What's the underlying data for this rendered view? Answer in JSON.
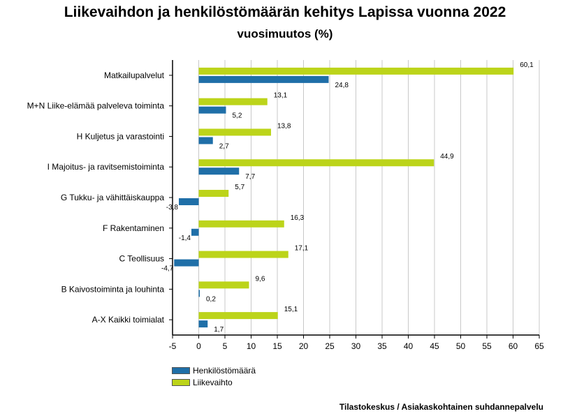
{
  "title": "Liikevaihdon ja henkilöstömäärän kehitys Lapissa vuonna 2022",
  "subtitle": "vuosimuutos (%)",
  "source": "Tilastokeskus / Asiakaskohtainen suhdannepalvelu",
  "legend": {
    "henkilosto": "Henkilöstömäärä",
    "liikevaihto": "Liikevaihto"
  },
  "colors": {
    "henkilosto": "#1f6fa8",
    "liikevaihto": "#bcd41a"
  },
  "chart_data": {
    "type": "bar",
    "orientation": "horizontal",
    "title": "Liikevaihdon ja henkilöstömäärän kehitys Lapissa vuonna 2022",
    "subtitle": "vuosimuutos (%)",
    "categories": [
      "Matkailupalvelut",
      "M+N Liike-elämää palveleva toiminta",
      "H Kuljetus ja varastointi",
      "I Majoitus- ja ravitsemistoiminta",
      "G Tukku- ja vähittäiskauppa",
      "F Rakentaminen",
      "C Teollisuus",
      "B Kaivostoiminta ja louhinta",
      "A-X Kaikki toimialat"
    ],
    "series": [
      {
        "name": "Liikevaihto",
        "values": [
          60.1,
          13.1,
          13.8,
          44.9,
          5.7,
          16.3,
          17.1,
          9.6,
          15.1
        ],
        "labels": [
          "60,1",
          "13,1",
          "13,8",
          "44,9",
          "5,7",
          "16,3",
          "17,1",
          "9,6",
          "15,1"
        ]
      },
      {
        "name": "Henkilöstömäärä",
        "values": [
          24.8,
          5.2,
          2.7,
          7.7,
          -3.8,
          -1.4,
          -4.7,
          0.2,
          1.7
        ],
        "labels": [
          "24,8",
          "5,2",
          "2,7",
          "7,7",
          "-3,8",
          "-1,4",
          "-4,7",
          "0,2",
          "1,7"
        ]
      }
    ],
    "xlim": [
      -5,
      65
    ],
    "xticks": [
      "-5",
      "0",
      "5",
      "10",
      "15",
      "20",
      "25",
      "30",
      "35",
      "40",
      "45",
      "50",
      "55",
      "60",
      "65"
    ],
    "grid": "vertical",
    "legend_position": "bottom-left"
  }
}
